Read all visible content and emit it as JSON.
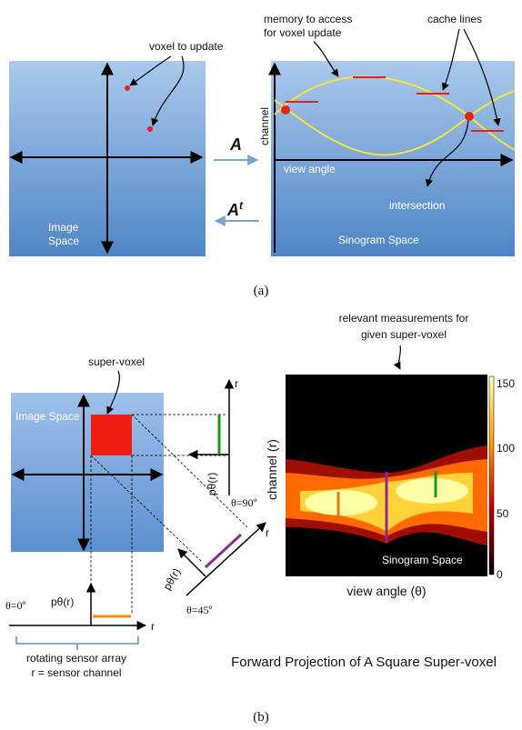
{
  "panel_a": {
    "voxel_to_update": "voxel to update",
    "memory_line1": "memory to access",
    "memory_line2": "for voxel update",
    "cache_lines": "cache lines",
    "channel": "channel",
    "view_angle": "view angle",
    "intersection": "intersection",
    "image_line1": "Image",
    "image_line2": "Space",
    "sinogram_space": "Sinogram Space",
    "forward_op": "A",
    "back_op_base": "A",
    "back_op_sup": "t",
    "caption": "(a)"
  },
  "panel_b": {
    "relevant_line1": "relevant measurements for",
    "relevant_line2": "given super-voxel",
    "super_voxel": "super-voxel",
    "image_space": "Image Space",
    "r_top": "r",
    "r_diag": "r",
    "r_bottom": "r",
    "p_theta_top": "pθ(r)",
    "p_theta_diag": "pθ(r)",
    "p_theta_bottom": "pθ(r)",
    "theta_90": "θ=90º",
    "theta_45": "θ=45º",
    "theta_0": "θ=0º",
    "channel_r": "channel (r)",
    "view_angle_theta": "view angle (θ)",
    "sinogram_space": "Sinogram Space",
    "colorbar_ticks": [
      "150",
      "100",
      "50",
      "0"
    ],
    "rotating_line1": "rotating sensor array",
    "rotating_line2": "r = sensor channel",
    "title": "Forward Projection of A Square Super-voxel",
    "caption": "(b)"
  }
}
